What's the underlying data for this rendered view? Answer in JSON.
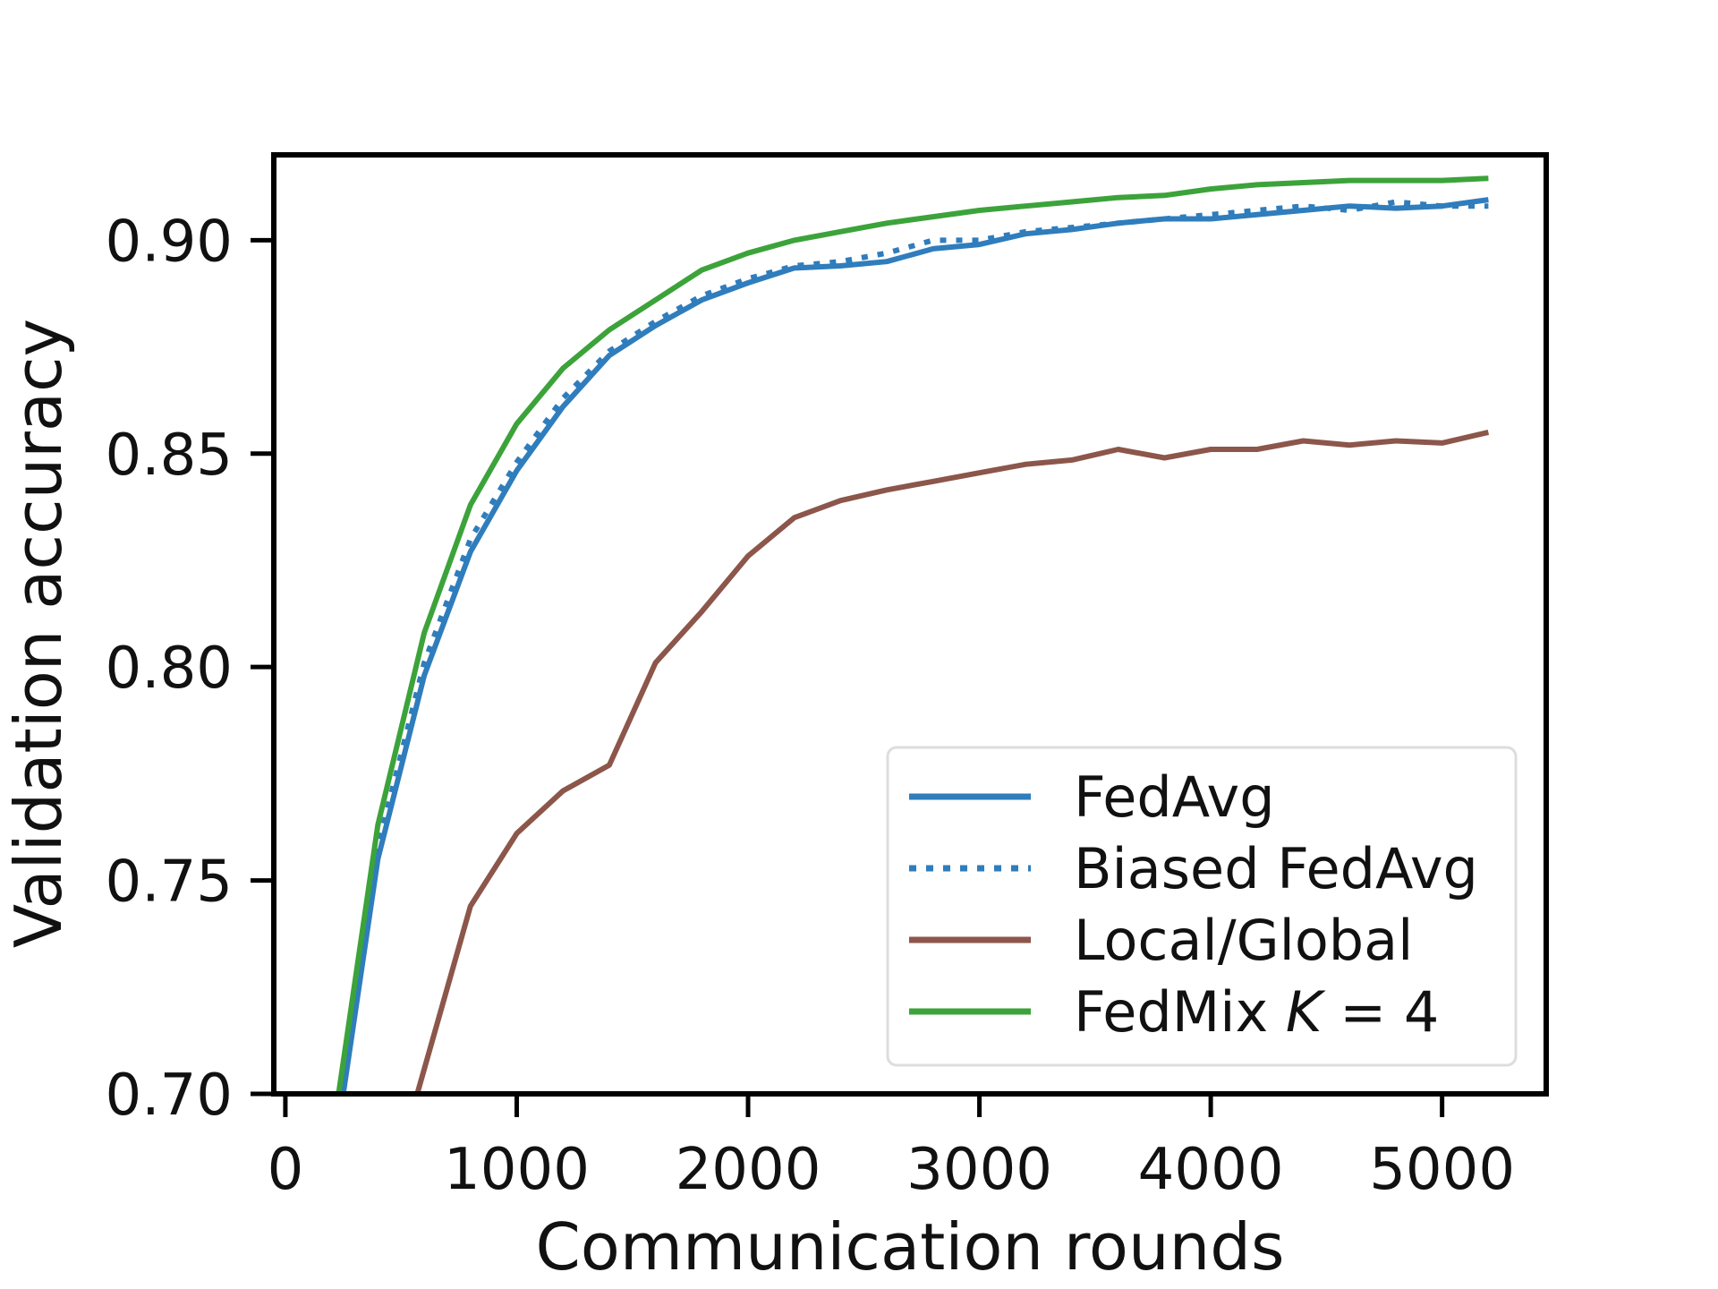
{
  "chart_data": {
    "type": "line",
    "title": "",
    "xlabel": "Communication rounds",
    "ylabel": "Validation accuracy",
    "xlim": [
      -50,
      5450
    ],
    "ylim": [
      0.7,
      0.92
    ],
    "xticks": [
      0,
      1000,
      2000,
      3000,
      4000,
      5000
    ],
    "xtick_labels": [
      "0",
      "1000",
      "2000",
      "3000",
      "4000",
      "5000"
    ],
    "yticks": [
      0.7,
      0.75,
      0.8,
      0.85,
      0.9
    ],
    "ytick_labels": [
      "0.70",
      "0.75",
      "0.80",
      "0.85",
      "0.90"
    ],
    "grid": false,
    "legend_position": "bottom-right",
    "series": [
      {
        "name": "FedAvg",
        "color": "#2f7dbc",
        "style": "solid",
        "x": [
          250,
          400,
          600,
          800,
          1000,
          1200,
          1400,
          1600,
          1800,
          2000,
          2200,
          2400,
          2600,
          2800,
          3000,
          3200,
          3400,
          3600,
          3800,
          4000,
          4200,
          4400,
          4600,
          4800,
          5000,
          5200
        ],
        "y": [
          0.7,
          0.755,
          0.798,
          0.827,
          0.846,
          0.861,
          0.873,
          0.88,
          0.886,
          0.89,
          0.8935,
          0.894,
          0.895,
          0.898,
          0.899,
          0.9015,
          0.9025,
          0.904,
          0.905,
          0.905,
          0.906,
          0.907,
          0.908,
          0.9075,
          0.908,
          0.9095
        ]
      },
      {
        "name": "Biased FedAvg",
        "color": "#2f7dbc",
        "style": "dotted",
        "x": [
          240,
          400,
          600,
          800,
          1000,
          1200,
          1400,
          1600,
          1800,
          2000,
          2200,
          2400,
          2600,
          2800,
          3000,
          3200,
          3400,
          3600,
          3800,
          4000,
          4200,
          4400,
          4600,
          4800,
          5000,
          5200
        ],
        "y": [
          0.7,
          0.758,
          0.801,
          0.83,
          0.848,
          0.863,
          0.874,
          0.881,
          0.887,
          0.891,
          0.894,
          0.895,
          0.897,
          0.9,
          0.9,
          0.902,
          0.903,
          0.904,
          0.905,
          0.906,
          0.907,
          0.908,
          0.907,
          0.909,
          0.908,
          0.908
        ]
      },
      {
        "name": "Local/Global",
        "color": "#8c564b",
        "style": "solid",
        "x": [
          570,
          800,
          1000,
          1200,
          1400,
          1600,
          1800,
          2000,
          2200,
          2400,
          2600,
          2800,
          3000,
          3200,
          3400,
          3600,
          3800,
          4000,
          4200,
          4400,
          4600,
          4800,
          5000,
          5200
        ],
        "y": [
          0.7,
          0.744,
          0.761,
          0.771,
          0.777,
          0.801,
          0.813,
          0.826,
          0.835,
          0.839,
          0.8415,
          0.8435,
          0.8455,
          0.8475,
          0.8485,
          0.851,
          0.849,
          0.851,
          0.851,
          0.853,
          0.852,
          0.853,
          0.8525,
          0.855
        ]
      },
      {
        "name": "FedMix K = 4",
        "color": "#3ca33a",
        "style": "solid",
        "x": [
          230,
          400,
          600,
          800,
          1000,
          1200,
          1400,
          1600,
          1800,
          2000,
          2200,
          2400,
          2600,
          2800,
          3000,
          3200,
          3400,
          3600,
          3800,
          4000,
          4200,
          4400,
          4600,
          4800,
          5000,
          5200
        ],
        "y": [
          0.7,
          0.763,
          0.808,
          0.838,
          0.857,
          0.87,
          0.879,
          0.886,
          0.893,
          0.897,
          0.9,
          0.902,
          0.904,
          0.9055,
          0.907,
          0.908,
          0.909,
          0.91,
          0.9105,
          0.912,
          0.913,
          0.9135,
          0.914,
          0.914,
          0.914,
          0.9145
        ]
      }
    ],
    "legend": {
      "entries": [
        {
          "label": "FedAvg",
          "math": ""
        },
        {
          "label": "Biased FedAvg",
          "math": ""
        },
        {
          "label": "Local/Global",
          "math": ""
        },
        {
          "label": "FedMix ",
          "math": "K",
          "suffix": " = 4"
        }
      ]
    }
  }
}
